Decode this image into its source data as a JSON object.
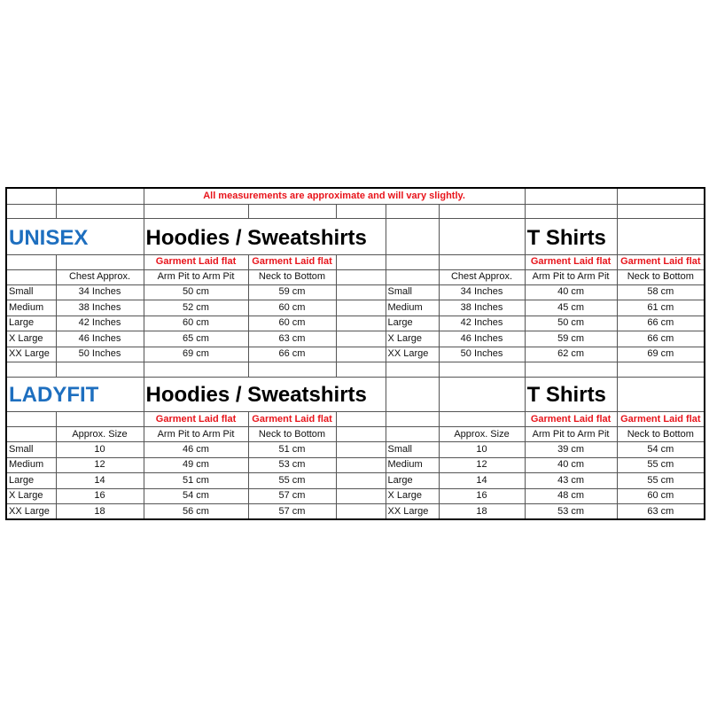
{
  "notice": "All measurements are approximate and will vary slightly.",
  "colors": {
    "section_title": "#1e6fbf",
    "notice_text": "#e8141b"
  },
  "sections": [
    {
      "title": "UNISEX",
      "left": {
        "title": "Hoodies / Sweatshirts",
        "subheaders": [
          "Garment Laid flat",
          "Garment Laid flat"
        ],
        "columns": [
          "Chest Approx.",
          "Arm Pit to Arm Pit",
          "Neck to Bottom"
        ],
        "rows": [
          [
            "Small",
            "34 Inches",
            "50 cm",
            "59 cm"
          ],
          [
            "Medium",
            "38 Inches",
            "52 cm",
            "60 cm"
          ],
          [
            "Large",
            "42 Inches",
            "60 cm",
            "60 cm"
          ],
          [
            "X Large",
            "46 Inches",
            "65 cm",
            "63 cm"
          ],
          [
            "XX Large",
            "50 Inches",
            "69 cm",
            "66 cm"
          ]
        ]
      },
      "right": {
        "title": "T Shirts",
        "subheaders": [
          "Garment Laid flat",
          "Garment Laid flat"
        ],
        "columns": [
          "Chest Approx.",
          "Arm Pit to Arm Pit",
          "Neck to Bottom"
        ],
        "rows": [
          [
            "Small",
            "34 Inches",
            "40 cm",
            "58 cm"
          ],
          [
            "Medium",
            "38 Inches",
            "45 cm",
            "61 cm"
          ],
          [
            "Large",
            "42 Inches",
            "50 cm",
            "66 cm"
          ],
          [
            "X Large",
            "46 Inches",
            "59 cm",
            "66 cm"
          ],
          [
            "XX Large",
            "50 Inches",
            "62 cm",
            "69 cm"
          ]
        ]
      }
    },
    {
      "title": "LADYFIT",
      "left": {
        "title": "Hoodies / Sweatshirts",
        "subheaders": [
          "Garment Laid flat",
          "Garment Laid flat"
        ],
        "columns": [
          "Approx. Size",
          "Arm Pit to Arm Pit",
          "Neck to Bottom"
        ],
        "rows": [
          [
            "Small",
            "10",
            "46 cm",
            "51 cm"
          ],
          [
            "Medium",
            "12",
            "49 cm",
            "53 cm"
          ],
          [
            "Large",
            "14",
            "51 cm",
            "55 cm"
          ],
          [
            "X Large",
            "16",
            "54 cm",
            "57 cm"
          ],
          [
            "XX Large",
            "18",
            "56 cm",
            "57 cm"
          ]
        ]
      },
      "right": {
        "title": "T Shirts",
        "subheaders": [
          "Garment Laid flat",
          "Garment Laid flat"
        ],
        "columns": [
          "Approx. Size",
          "Arm Pit to Arm Pit",
          "Neck to Bottom"
        ],
        "rows": [
          [
            "Small",
            "10",
            "39 cm",
            "54 cm"
          ],
          [
            "Medium",
            "12",
            "40 cm",
            "55 cm"
          ],
          [
            "Large",
            "14",
            "43 cm",
            "55 cm"
          ],
          [
            "X Large",
            "16",
            "48 cm",
            "60 cm"
          ],
          [
            "XX Large",
            "18",
            "53 cm",
            "63 cm"
          ]
        ]
      }
    }
  ]
}
